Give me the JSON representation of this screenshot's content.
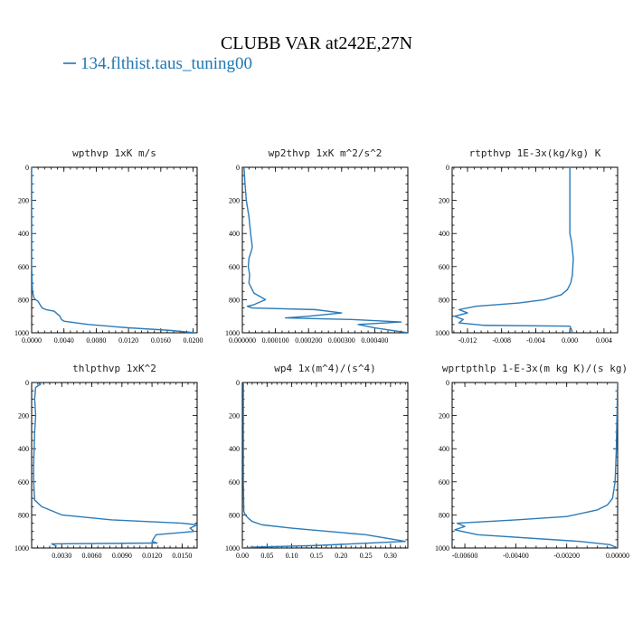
{
  "figure": {
    "title": "CLUBB VAR at242E,27N",
    "legend_label": "134.flthist.taus_tuning00",
    "legend_color": "#1f77b4",
    "line_color": "#2b7bb9"
  },
  "chart_data": [
    {
      "type": "line",
      "title": "wpthvp  1xK m/s",
      "ylim": [
        1000,
        0
      ],
      "yticks": [
        "0",
        "200",
        "400",
        "600",
        "800",
        "1000"
      ],
      "xlim": [
        0,
        0.0205
      ],
      "xticks": [
        0.0,
        0.004,
        0.008,
        0.012,
        0.016,
        0.02
      ],
      "xtick_labels": [
        "0.0000",
        "0.0040",
        "0.0080",
        "0.0120",
        "0.0160",
        "0.0200"
      ],
      "series": [
        {
          "x": [
            0,
            0,
            0,
            0.0001,
            0.0003,
            0.0005,
            0.0008,
            0.0011,
            0.0013,
            0.0018,
            0.0028,
            0.0035,
            0.0037,
            0.004,
            0.007,
            0.012,
            0.017,
            0.0203
          ],
          "y": [
            0,
            300,
            600,
            750,
            790,
            800,
            810,
            835,
            850,
            860,
            870,
            900,
            920,
            930,
            950,
            970,
            985,
            1000
          ]
        }
      ]
    },
    {
      "type": "line",
      "title": "wp2thvp  1xK m^2/s^2",
      "ylim": [
        1000,
        0
      ],
      "yticks": [
        "0",
        "200",
        "400",
        "600",
        "800",
        "1000"
      ],
      "xlim": [
        0,
        0.0005
      ],
      "xticks": [
        0.0,
        0.0001,
        0.0002,
        0.0003,
        0.0004
      ],
      "xtick_labels": [
        "0.000000",
        "0.000100",
        "0.000200",
        "0.000300",
        "0.000400"
      ],
      "series": [
        {
          "x": [
            5e-06,
            8e-06,
            1.2e-05,
            2e-05,
            2.5e-05,
            3e-05,
            2.8e-05,
            2e-05,
            1.8e-05,
            2.2e-05,
            2e-05,
            3.5e-05,
            7e-05,
            3.5e-05,
            1.5e-05,
            3e-05,
            0.00022,
            0.0003,
            0.0002,
            0.00013,
            0.00033,
            0.00048,
            0.00035,
            0.0004,
            0.0005
          ],
          "y": [
            0,
            100,
            200,
            300,
            400,
            480,
            500,
            550,
            600,
            650,
            700,
            760,
            800,
            830,
            840,
            850,
            860,
            880,
            900,
            910,
            920,
            935,
            950,
            970,
            1000
          ]
        }
      ]
    },
    {
      "type": "line",
      "title": "rtpthvp  1E-3x(kg/kg) K",
      "ylim": [
        1000,
        0
      ],
      "yticks": [
        "0",
        "200",
        "400",
        "600",
        "800",
        "1000"
      ],
      "xlim": [
        -0.0138,
        0.0056
      ],
      "xticks": [
        -0.012,
        -0.008,
        -0.004,
        0.0,
        0.004
      ],
      "xtick_labels": [
        "-0.012",
        "-0.008",
        "-0.004",
        "0.000",
        "0.004"
      ],
      "series": [
        {
          "x": [
            0,
            0,
            0.0002,
            0.0004,
            0.0003,
            0.0001,
            -0.0003,
            -0.001,
            -0.003,
            -0.006,
            -0.011,
            -0.013,
            -0.012,
            -0.0135,
            -0.0125,
            -0.013,
            -0.01,
            0,
            0.0002,
            0.0003
          ],
          "y": [
            0,
            400,
            450,
            550,
            650,
            700,
            740,
            770,
            800,
            820,
            840,
            860,
            880,
            900,
            920,
            940,
            955,
            960,
            980,
            1000
          ]
        }
      ]
    },
    {
      "type": "line",
      "title": "thlpthvp  1xK^2",
      "ylim": [
        1000,
        0
      ],
      "yticks": [
        "0",
        "200",
        "400",
        "600",
        "800",
        "1000"
      ],
      "xlim": [
        0,
        0.0165
      ],
      "xticks": [
        0.003,
        0.006,
        0.009,
        0.012,
        0.015
      ],
      "xtick_labels": [
        "0.0030",
        "0.0060",
        "0.0090",
        "0.0120",
        "0.0150"
      ],
      "series": [
        {
          "x": [
            0.0005,
            0.0009,
            0.0004,
            0.0003,
            0.0004,
            0.0003,
            0.0002,
            0.0002,
            0.0003,
            0.001,
            0.003,
            0.008,
            0.015,
            0.0165,
            0.0158,
            0.0162,
            0.0124,
            0.012,
            0.0125,
            0.002,
            0.0025
          ],
          "y": [
            0,
            10,
            30,
            100,
            200,
            300,
            500,
            600,
            710,
            750,
            800,
            830,
            850,
            860,
            880,
            900,
            920,
            960,
            970,
            975,
            990
          ]
        }
      ]
    },
    {
      "type": "line",
      "title": "wp4  1x(m^4)/(s^4)",
      "ylim": [
        1000,
        0
      ],
      "yticks": [
        "0",
        "200",
        "400",
        "600",
        "800",
        "1000"
      ],
      "xlim": [
        0,
        0.335
      ],
      "xticks": [
        0.0,
        0.05,
        0.1,
        0.15,
        0.2,
        0.25,
        0.3
      ],
      "xtick_labels": [
        "0.00",
        "0.05",
        "0.10",
        "0.15",
        "0.20",
        "0.25",
        "0.30"
      ],
      "series": [
        {
          "x": [
            0.002,
            0.002,
            0.002,
            0.003,
            0.006,
            0.012,
            0.02,
            0.04,
            0.1,
            0.25,
            0.33,
            0.15,
            0.02,
            0
          ],
          "y": [
            0,
            300,
            600,
            780,
            800,
            820,
            840,
            860,
            880,
            920,
            960,
            985,
            995,
            1000
          ]
        }
      ]
    },
    {
      "type": "line",
      "title": "wprtpthlp  1-E-3x(m kg K)/(s kg)",
      "ylim": [
        1000,
        0
      ],
      "yticks": [
        "0",
        "200",
        "400",
        "600",
        "800",
        "1000"
      ],
      "xlim": [
        -0.0065,
        0
      ],
      "xticks": [
        -0.006,
        -0.004,
        -0.002,
        0.0
      ],
      "xtick_labels": [
        "-0.00600",
        "-0.00400",
        "-0.00200",
        "0.00000"
      ],
      "series": [
        {
          "x": [
            0,
            -5e-05,
            -0.0001,
            -0.0002,
            -0.0004,
            -0.0008,
            -0.002,
            -0.004,
            -0.0063,
            -0.006,
            -0.0064,
            -0.0055,
            -0.0015,
            -0.0003,
            0
          ],
          "y": [
            0,
            400,
            600,
            700,
            740,
            770,
            810,
            830,
            850,
            870,
            890,
            920,
            960,
            980,
            1000
          ]
        }
      ]
    }
  ]
}
